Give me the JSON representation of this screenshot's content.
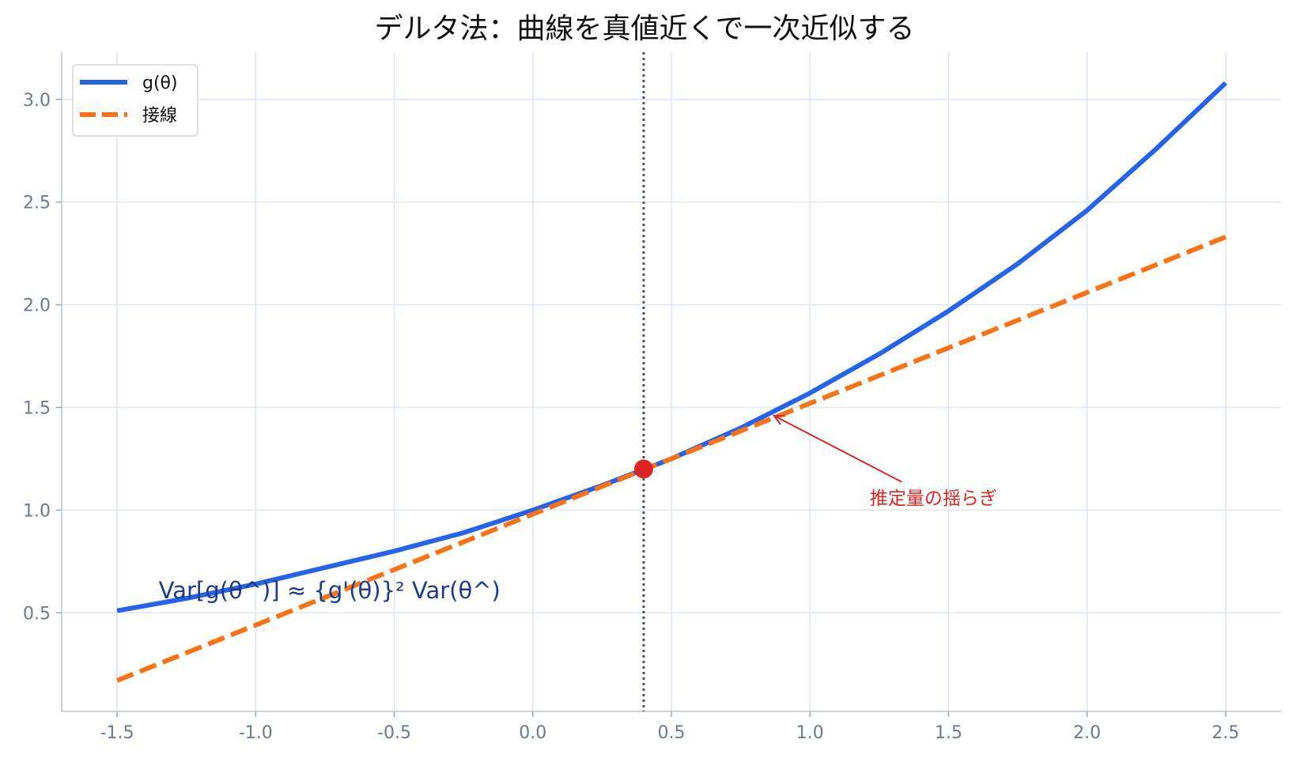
{
  "chart_data": {
    "type": "line",
    "title": "デルタ法：曲線を真値近くで一次近似する",
    "xlabel": "",
    "ylabel": "",
    "xlim": [
      -1.7,
      2.7
    ],
    "ylim": [
      0.02,
      3.23
    ],
    "x_ticks": [
      -1.5,
      -1.0,
      -0.5,
      0.0,
      0.5,
      1.0,
      1.5,
      2.0,
      2.5
    ],
    "y_ticks": [
      0.5,
      1.0,
      1.5,
      2.0,
      2.5,
      3.0
    ],
    "x_tick_labels": [
      "-1.5",
      "-1.0",
      "-0.5",
      "0.0",
      "0.5",
      "1.0",
      "1.5",
      "2.0",
      "2.5"
    ],
    "y_tick_labels": [
      "0.5",
      "1.0",
      "1.5",
      "2.0",
      "2.5",
      "3.0"
    ],
    "grid": true,
    "legend_position": "top-left",
    "series": [
      {
        "name": "g(θ)",
        "style": "solid",
        "color": "#2563eb",
        "x": [
          -1.5,
          -1.25,
          -1.0,
          -0.75,
          -0.5,
          -0.25,
          0.0,
          0.25,
          0.5,
          0.75,
          1.0,
          1.25,
          1.5,
          1.75,
          2.0,
          2.25,
          2.5
        ],
        "y": [
          0.51,
          0.57,
          0.64,
          0.72,
          0.8,
          0.89,
          1.0,
          1.12,
          1.25,
          1.4,
          1.57,
          1.76,
          1.97,
          2.2,
          2.46,
          2.76,
          3.08
        ]
      },
      {
        "name": "接線",
        "style": "dashed",
        "color": "#f97316",
        "x": [
          -1.5,
          2.5
        ],
        "y": [
          0.17,
          2.33
        ]
      }
    ],
    "vline": {
      "x": 0.4,
      "style": "dotted",
      "color": "#4b5563"
    },
    "point": {
      "x": 0.4,
      "y": 1.2,
      "color": "#dc2626"
    },
    "annotations": [
      {
        "text": "Var[g(θ^)] ≈ {g'(θ)}² Var(θ^)",
        "x": -1.35,
        "y": 0.57,
        "color": "#1e3a8a"
      },
      {
        "text": "推定量の揺らぎ",
        "x": 1.2,
        "y": 1.06,
        "arrow_to": [
          0.87,
          1.46
        ],
        "color": "#dc2626"
      }
    ]
  }
}
